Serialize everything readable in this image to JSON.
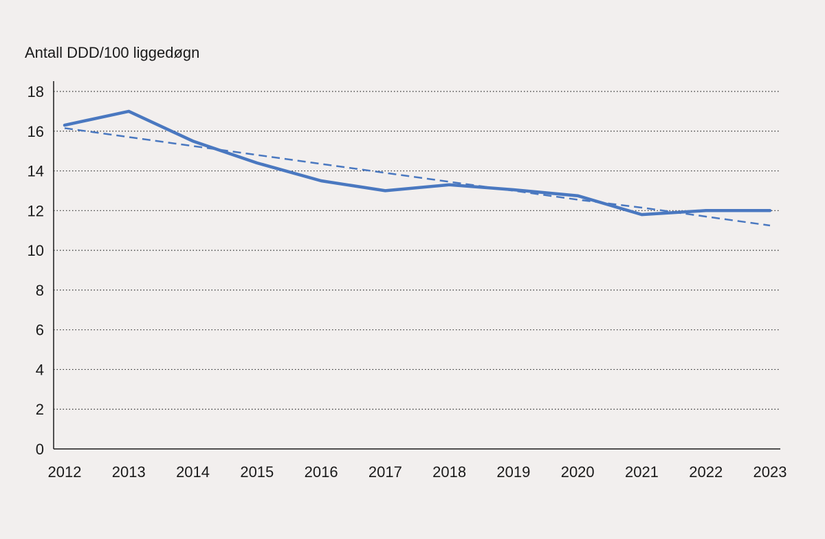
{
  "chart_data": {
    "type": "line",
    "ylabel": "Antall DDD/100 liggedøgn",
    "xlabel": "",
    "title": "",
    "x": [
      "2012",
      "2013",
      "2014",
      "2015",
      "2016",
      "2017",
      "2018",
      "2019",
      "2020",
      "2021",
      "2022",
      "2023"
    ],
    "ylim": [
      0,
      18
    ],
    "yticks": [
      0,
      2,
      4,
      6,
      8,
      10,
      12,
      14,
      16,
      18
    ],
    "grid": "horizontal-dotted",
    "legend": "none",
    "series": [
      {
        "values": [
          16.3,
          17.0,
          15.5,
          14.4,
          13.5,
          13.0,
          13.3,
          13.05,
          12.75,
          11.8,
          12.0,
          12.0
        ],
        "color": "#4a78c0",
        "style": "solid"
      },
      {
        "values": [
          16.15,
          15.7,
          15.25,
          14.8,
          14.35,
          13.9,
          13.45,
          13.0,
          12.55,
          12.15,
          11.7,
          11.25
        ],
        "color": "#4a78c0",
        "style": "dashed"
      }
    ]
  }
}
